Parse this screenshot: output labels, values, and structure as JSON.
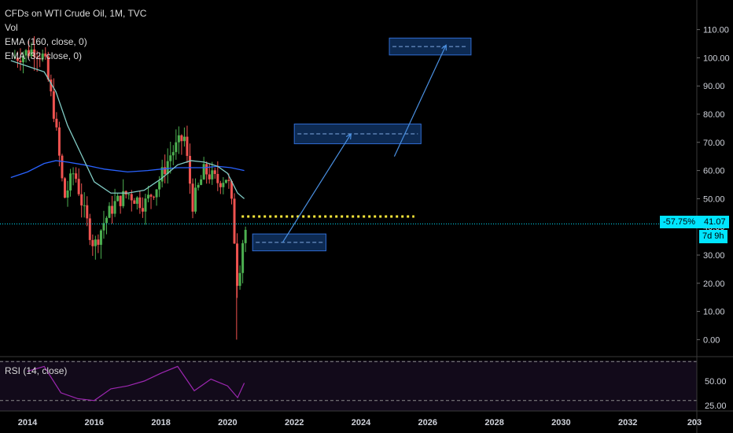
{
  "legend": {
    "title": "CFDs on WTI Crude Oil, 1M, TVC",
    "vol": "Vol",
    "ema1": "EMA (160, close, 0)",
    "ema2": "EMA (32, close, 0)"
  },
  "rsi": {
    "label": "RSI (14, close)"
  },
  "price_tags": {
    "change": "-57.75%",
    "last": "41.07",
    "timer": "7d 9h"
  },
  "colors": {
    "background": "#000000",
    "up": "#4caf50",
    "down": "#ef5350",
    "ema_long": "#2962ff",
    "ema_short": "#80cbc4",
    "last_price_line": "#00e5ff",
    "target_line": "#ffeb3b",
    "box_fill": "#0d2a52",
    "box_border": "#2f6bd1",
    "projection": "#4a90e2",
    "rsi_line": "#9c27b0"
  },
  "chart_data": {
    "type": "line",
    "title": "CFDs on WTI Crude Oil, 1M, TVC",
    "y_axis": {
      "ticks": [
        "110.00",
        "100.00",
        "90.00",
        "80.00",
        "70.00",
        "60.00",
        "50.00",
        "40.00",
        "30.00",
        "20.00",
        "10.00",
        "0.00"
      ],
      "ylim": [
        -5,
        114
      ]
    },
    "x_axis": {
      "ticks": [
        "2014",
        "2016",
        "2018",
        "2020",
        "2022",
        "2024",
        "2026",
        "2028",
        "2030",
        "2032",
        "203"
      ],
      "xlim": [
        2013.8,
        2034.0
      ]
    },
    "series": [
      {
        "name": "EMA (160, close, 0)",
        "x": [
          2013.5,
          2014.0,
          2014.5,
          2014.85,
          2015.2,
          2015.7,
          2016.3,
          2017.0,
          2017.6,
          2018.0,
          2018.5,
          2018.9,
          2019.3,
          2019.7,
          2020.1,
          2020.5
        ],
        "values": [
          57.5,
          59.5,
          62.5,
          63.5,
          63.0,
          62.0,
          60.5,
          59.5,
          60.0,
          60.5,
          61.0,
          61.0,
          61.0,
          61.5,
          61.0,
          60.0
        ]
      },
      {
        "name": "EMA (32, close, 0)",
        "x": [
          2013.5,
          2014.0,
          2014.5,
          2014.85,
          2015.2,
          2015.6,
          2016.0,
          2016.5,
          2017.0,
          2017.5,
          2018.0,
          2018.5,
          2018.9,
          2019.3,
          2019.7,
          2020.0,
          2020.3,
          2020.5
        ],
        "values": [
          99.0,
          97.0,
          95.0,
          88.0,
          76.0,
          66.0,
          56.0,
          52.0,
          52.0,
          53.0,
          57.0,
          62.0,
          63.5,
          63.0,
          61.5,
          59.0,
          52.0,
          50.0
        ]
      },
      {
        "name": "RSI (14, close)",
        "x": [
          2014.0,
          2014.5,
          2015.0,
          2015.5,
          2016.0,
          2016.5,
          2017.0,
          2017.5,
          2018.0,
          2018.5,
          2019.0,
          2019.5,
          2020.0,
          2020.3,
          2020.5
        ],
        "values": [
          60,
          65,
          38,
          32,
          30,
          42,
          45,
          50,
          58,
          65,
          40,
          52,
          45,
          33,
          48
        ]
      }
    ],
    "annotations": {
      "last_price": 41.07,
      "last_change": "-57.75%",
      "countdown": "7d 9h",
      "target_level": 43.7,
      "zones": [
        {
          "x": [
            2020.75,
            2022.95
          ],
          "y": [
            31.5,
            37.5
          ],
          "mid": 34.5
        },
        {
          "x": [
            2022.0,
            2025.8
          ],
          "y": [
            69.5,
            76.5
          ],
          "mid": 73.0
        },
        {
          "x": [
            2024.85,
            2027.3
          ],
          "y": [
            101.0,
            107.0
          ],
          "mid": 104.0
        }
      ],
      "projections": [
        {
          "from": [
            2021.65,
            34.5
          ],
          "to": [
            2023.7,
            73.0
          ]
        },
        {
          "from": [
            2025.0,
            65.0
          ],
          "to": [
            2026.55,
            104.5
          ]
        }
      ]
    },
    "rsi": {
      "levels": [
        70,
        30
      ],
      "ticks": [
        "50.00",
        "25.00"
      ]
    },
    "grid": false
  }
}
